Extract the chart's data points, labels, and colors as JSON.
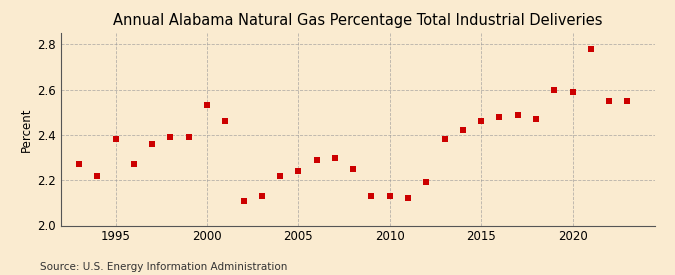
{
  "title": "Annual Alabama Natural Gas Percentage Total Industrial Deliveries",
  "ylabel": "Percent",
  "source": "Source: U.S. Energy Information Administration",
  "years": [
    1993,
    1994,
    1995,
    1996,
    1997,
    1998,
    1999,
    2000,
    2001,
    2002,
    2003,
    2004,
    2005,
    2006,
    2007,
    2008,
    2009,
    2010,
    2011,
    2012,
    2013,
    2014,
    2015,
    2016,
    2017,
    2018,
    2019,
    2020,
    2021,
    2022,
    2023
  ],
  "values": [
    2.27,
    2.22,
    2.38,
    2.27,
    2.36,
    2.39,
    2.39,
    2.53,
    2.46,
    2.11,
    2.13,
    2.22,
    2.24,
    2.29,
    2.3,
    2.25,
    2.13,
    2.13,
    2.12,
    2.19,
    2.38,
    2.42,
    2.46,
    2.48,
    2.49,
    2.47,
    2.6,
    2.59,
    2.78,
    2.55,
    2.55
  ],
  "marker_color": "#cc0000",
  "marker_size": 4,
  "background_color": "#faebd0",
  "grid_color": "#999999",
  "ylim": [
    2.0,
    2.85
  ],
  "yticks": [
    2.0,
    2.2,
    2.4,
    2.6,
    2.8
  ],
  "xlim": [
    1992.0,
    2024.5
  ],
  "xticks": [
    1995,
    2000,
    2005,
    2010,
    2015,
    2020
  ],
  "title_fontsize": 10.5,
  "axis_fontsize": 8.5,
  "source_fontsize": 7.5
}
